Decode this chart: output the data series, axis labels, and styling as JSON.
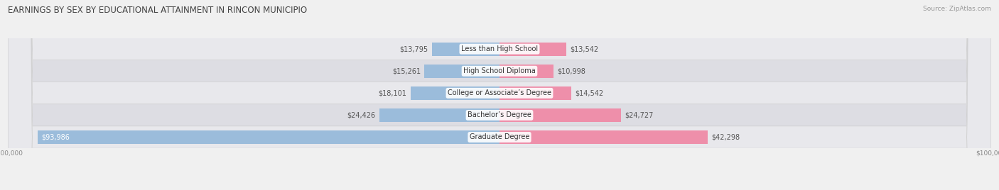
{
  "title": "EARNINGS BY SEX BY EDUCATIONAL ATTAINMENT IN RINCON MUNICIPIO",
  "source": "Source: ZipAtlas.com",
  "categories": [
    "Less than High School",
    "High School Diploma",
    "College or Associate’s Degree",
    "Bachelor’s Degree",
    "Graduate Degree"
  ],
  "male_values": [
    13795,
    15261,
    18101,
    24426,
    93986
  ],
  "female_values": [
    13542,
    10998,
    14542,
    24727,
    42298
  ],
  "male_color": "#9bbcdb",
  "female_color": "#ee8faa",
  "label_color": "#555555",
  "bar_height": 0.62,
  "max_val": 100000,
  "bg_color": "#f0f0f0",
  "row_bg_colors": [
    "#e8e8ec",
    "#dddde3"
  ],
  "title_fontsize": 8.5,
  "source_fontsize": 6.5,
  "tick_fontsize": 6.5,
  "value_fontsize": 7,
  "category_fontsize": 7
}
